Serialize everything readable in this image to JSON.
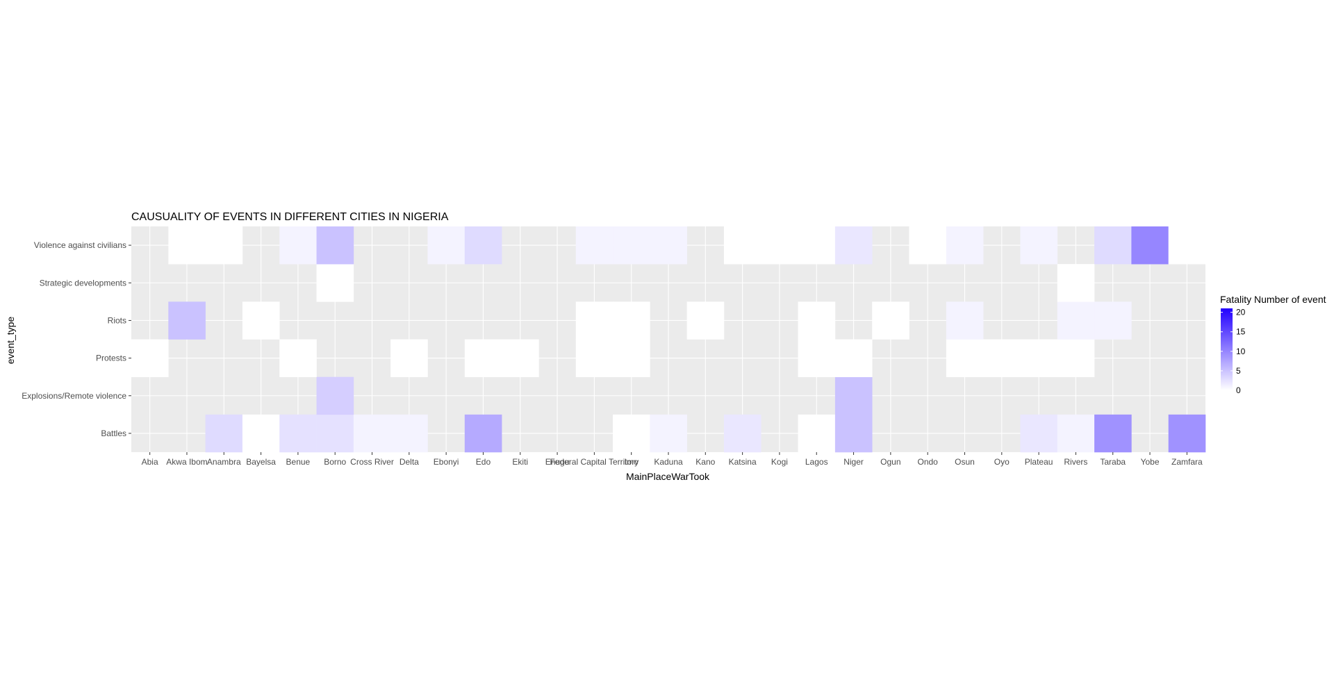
{
  "chart_data": {
    "type": "heatmap",
    "title": "CAUSUALITY OF EVENTS IN DIFFERENT CITIES IN NIGERIA",
    "xlabel": "MainPlaceWarTook",
    "ylabel": "event_type",
    "x_categories": [
      "Abia",
      "Akwa Ibom",
      "Anambra",
      "Bayelsa",
      "Benue",
      "Borno",
      "Cross River",
      "Delta",
      "Ebonyi",
      "Edo",
      "Ekiti",
      "Enugu",
      "Federal Capital Territory",
      "Imo",
      "Kaduna",
      "Kano",
      "Katsina",
      "Kogi",
      "Lagos",
      "Niger",
      "Ogun",
      "Ondo",
      "Osun",
      "Oyo",
      "Plateau",
      "Rivers",
      "Taraba",
      "Yobe",
      "Zamfara"
    ],
    "y_categories": [
      "Battles",
      "Explosions/Remote violence",
      "Protests",
      "Riots",
      "Strategic developments",
      "Violence against civilians"
    ],
    "legend": {
      "title": "Fatality Number of event",
      "ticks": [
        0,
        5,
        10,
        15,
        20
      ],
      "min": 0,
      "max": 21,
      "low_color": "#ffffff",
      "high_color": "#2200ff"
    },
    "panel_background": "#ebebeb",
    "grid": true,
    "legend_position": "right",
    "cells": [
      {
        "x": "Anambra",
        "y": "Battles",
        "value": 3
      },
      {
        "x": "Bayelsa",
        "y": "Battles",
        "value": 0
      },
      {
        "x": "Benue",
        "y": "Battles",
        "value": 2.5
      },
      {
        "x": "Borno",
        "y": "Battles",
        "value": 2.5
      },
      {
        "x": "Cross River",
        "y": "Battles",
        "value": 1
      },
      {
        "x": "Delta",
        "y": "Battles",
        "value": 1
      },
      {
        "x": "Edo",
        "y": "Battles",
        "value": 7
      },
      {
        "x": "Imo",
        "y": "Battles",
        "value": 0
      },
      {
        "x": "Kaduna",
        "y": "Battles",
        "value": 1
      },
      {
        "x": "Katsina",
        "y": "Battles",
        "value": 2
      },
      {
        "x": "Lagos",
        "y": "Battles",
        "value": 0
      },
      {
        "x": "Niger",
        "y": "Battles",
        "value": 5
      },
      {
        "x": "Plateau",
        "y": "Battles",
        "value": 2
      },
      {
        "x": "Rivers",
        "y": "Battles",
        "value": 1
      },
      {
        "x": "Taraba",
        "y": "Battles",
        "value": 9
      },
      {
        "x": "Zamfara",
        "y": "Battles",
        "value": 9
      },
      {
        "x": "Borno",
        "y": "Explosions/Remote violence",
        "value": 4
      },
      {
        "x": "Niger",
        "y": "Explosions/Remote violence",
        "value": 5
      },
      {
        "x": "Abia",
        "y": "Protests",
        "value": 0
      },
      {
        "x": "Benue",
        "y": "Protests",
        "value": 0
      },
      {
        "x": "Delta",
        "y": "Protests",
        "value": 0
      },
      {
        "x": "Edo",
        "y": "Protests",
        "value": 0
      },
      {
        "x": "Ekiti",
        "y": "Protests",
        "value": 0
      },
      {
        "x": "Federal Capital Territory",
        "y": "Protests",
        "value": 0
      },
      {
        "x": "Imo",
        "y": "Protests",
        "value": 0
      },
      {
        "x": "Lagos",
        "y": "Protests",
        "value": 0
      },
      {
        "x": "Niger",
        "y": "Protests",
        "value": 0
      },
      {
        "x": "Osun",
        "y": "Protests",
        "value": 0
      },
      {
        "x": "Oyo",
        "y": "Protests",
        "value": 0
      },
      {
        "x": "Plateau",
        "y": "Protests",
        "value": 0
      },
      {
        "x": "Rivers",
        "y": "Protests",
        "value": 0
      },
      {
        "x": "Akwa Ibom",
        "y": "Riots",
        "value": 5
      },
      {
        "x": "Bayelsa",
        "y": "Riots",
        "value": 0
      },
      {
        "x": "Federal Capital Territory",
        "y": "Riots",
        "value": 0
      },
      {
        "x": "Imo",
        "y": "Riots",
        "value": 0
      },
      {
        "x": "Kano",
        "y": "Riots",
        "value": 0
      },
      {
        "x": "Lagos",
        "y": "Riots",
        "value": 0
      },
      {
        "x": "Ogun",
        "y": "Riots",
        "value": 0
      },
      {
        "x": "Osun",
        "y": "Riots",
        "value": 1
      },
      {
        "x": "Rivers",
        "y": "Riots",
        "value": 1
      },
      {
        "x": "Taraba",
        "y": "Riots",
        "value": 1
      },
      {
        "x": "Borno",
        "y": "Strategic developments",
        "value": 0
      },
      {
        "x": "Rivers",
        "y": "Strategic developments",
        "value": 0
      },
      {
        "x": "Akwa Ibom",
        "y": "Violence against civilians",
        "value": 0
      },
      {
        "x": "Anambra",
        "y": "Violence against civilians",
        "value": 0
      },
      {
        "x": "Benue",
        "y": "Violence against civilians",
        "value": 1
      },
      {
        "x": "Borno",
        "y": "Violence against civilians",
        "value": 5
      },
      {
        "x": "Ebonyi",
        "y": "Violence against civilians",
        "value": 1
      },
      {
        "x": "Edo",
        "y": "Violence against civilians",
        "value": 3
      },
      {
        "x": "Federal Capital Territory",
        "y": "Violence against civilians",
        "value": 1
      },
      {
        "x": "Imo",
        "y": "Violence against civilians",
        "value": 1
      },
      {
        "x": "Kaduna",
        "y": "Violence against civilians",
        "value": 1
      },
      {
        "x": "Katsina",
        "y": "Violence against civilians",
        "value": 0
      },
      {
        "x": "Kogi",
        "y": "Violence against civilians",
        "value": 0
      },
      {
        "x": "Lagos",
        "y": "Violence against civilians",
        "value": 0
      },
      {
        "x": "Niger",
        "y": "Violence against civilians",
        "value": 2
      },
      {
        "x": "Ondo",
        "y": "Violence against civilians",
        "value": 0
      },
      {
        "x": "Osun",
        "y": "Violence against civilians",
        "value": 1
      },
      {
        "x": "Plateau",
        "y": "Violence against civilians",
        "value": 1
      },
      {
        "x": "Taraba",
        "y": "Violence against civilians",
        "value": 3
      },
      {
        "x": "Yobe",
        "y": "Violence against civilians",
        "value": 10
      },
      {
        "x": "Zamfara",
        "y": "Violence against civilians",
        "value": 0
      }
    ]
  }
}
